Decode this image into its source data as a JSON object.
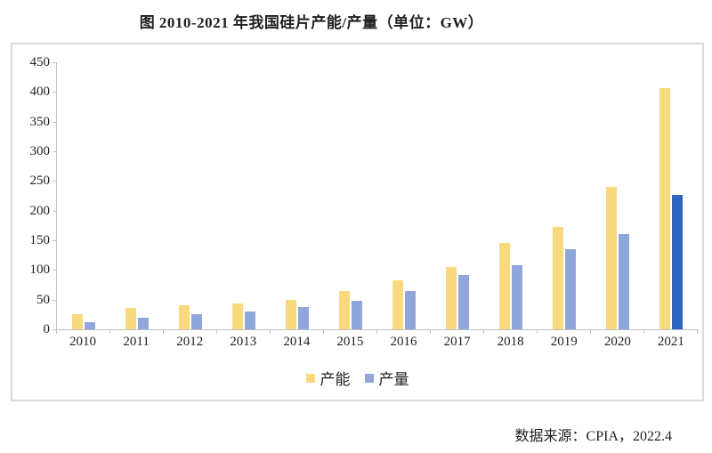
{
  "title": "图 2010-2021 年我国硅片产能/产量（单位：GW）",
  "source_note": "数据来源：CPIA，2022.4",
  "legend": {
    "capacity_label": "产能",
    "production_label": "产量"
  },
  "colors": {
    "capacity": "#F9D97E",
    "production": "#8EA6D9",
    "production_highlight_2021": "#2E63BE",
    "axis": "#BFBFBF",
    "box_border": "#D9D9D9",
    "text": "#1F1F1F"
  },
  "chart_data": {
    "type": "bar",
    "title": "图 2010-2021 年我国硅片产能/产量（单位：GW）",
    "unit": "GW",
    "categories": [
      "2010",
      "2011",
      "2012",
      "2013",
      "2014",
      "2015",
      "2016",
      "2017",
      "2018",
      "2019",
      "2020",
      "2021"
    ],
    "series": [
      {
        "name": "产能",
        "color": "#F9D97E",
        "values": [
          25,
          36,
          41,
          43,
          50,
          64,
          82,
          105,
          146,
          173,
          240,
          407
        ]
      },
      {
        "name": "产量",
        "color": "#8EA6D9",
        "last_bar_color": "#2E63BE",
        "values": [
          12,
          20,
          26,
          30,
          38,
          48,
          64,
          92,
          108,
          135,
          161,
          227
        ]
      }
    ],
    "ylim": [
      0,
      450
    ],
    "y_ticks": [
      0,
      50,
      100,
      150,
      200,
      250,
      300,
      350,
      400,
      450
    ],
    "grid": false,
    "legend_position": "bottom",
    "source": "数据来源：CPIA，2022.4"
  }
}
